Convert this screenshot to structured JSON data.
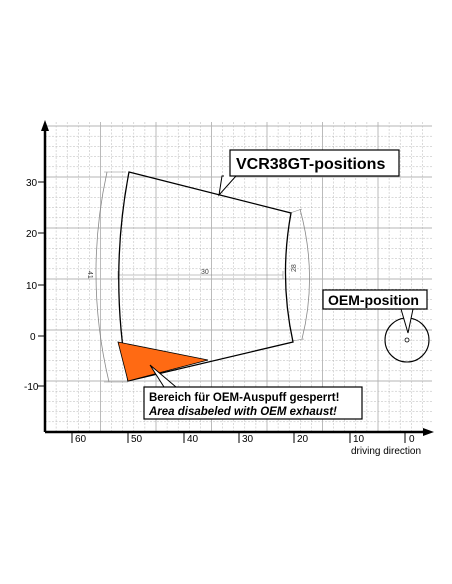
{
  "labels": {
    "vcr_title": "VCR38GT-positions",
    "oem_title": "OEM-position",
    "warning_de": "Bereich für OEM-Auspuff gesperrt!",
    "warning_en": "Area disabeled with OEM exhaust!",
    "x_axis_caption": "driving direction"
  },
  "y_ticks": [
    "30",
    "20",
    "10",
    "0",
    "-10"
  ],
  "x_ticks": [
    "60",
    "50",
    "40",
    "30",
    "20",
    "10",
    "0"
  ],
  "dimensions": {
    "width": "30",
    "left_arc": "41",
    "right_arc": "28"
  },
  "colors": {
    "grid": "#b4b4b4",
    "disabled_area": "#ff6a13",
    "outline": "#000000"
  }
}
